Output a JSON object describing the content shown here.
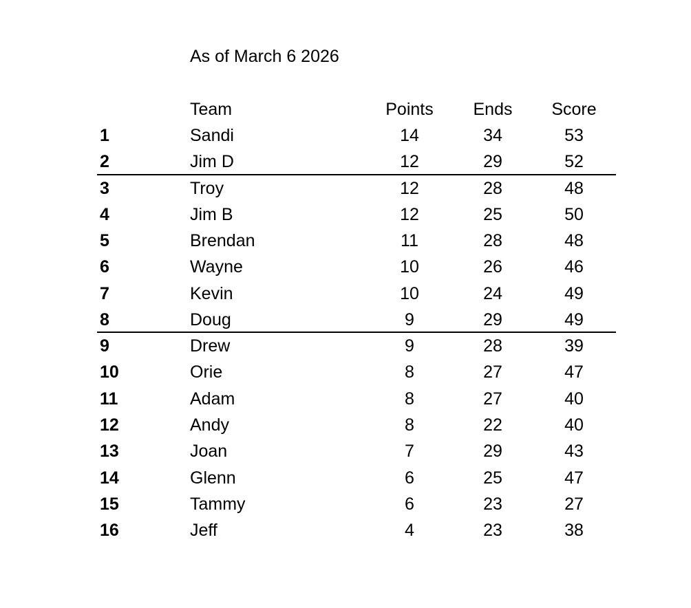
{
  "title": "As of March 6 2026",
  "headers": {
    "rank": "",
    "team": "Team",
    "points": "Points",
    "ends": "Ends",
    "score": "Score"
  },
  "rows": [
    {
      "rank": "1",
      "team": "Sandi",
      "points": "14",
      "ends": "34",
      "score": "53"
    },
    {
      "rank": "2",
      "team": "Jim D",
      "points": "12",
      "ends": "29",
      "score": "52"
    },
    {
      "rank": "3",
      "team": "Troy",
      "points": "12",
      "ends": "28",
      "score": "48"
    },
    {
      "rank": "4",
      "team": "Jim B",
      "points": "12",
      "ends": "25",
      "score": "50"
    },
    {
      "rank": "5",
      "team": "Brendan",
      "points": "11",
      "ends": "28",
      "score": "48"
    },
    {
      "rank": "6",
      "team": "Wayne",
      "points": "10",
      "ends": "26",
      "score": "46"
    },
    {
      "rank": "7",
      "team": "Kevin",
      "points": "10",
      "ends": "24",
      "score": "49"
    },
    {
      "rank": "8",
      "team": "Doug",
      "points": "9",
      "ends": "29",
      "score": "49"
    },
    {
      "rank": "9",
      "team": "Drew",
      "points": "9",
      "ends": "28",
      "score": "39"
    },
    {
      "rank": "10",
      "team": "Orie",
      "points": "8",
      "ends": "27",
      "score": "47"
    },
    {
      "rank": "11",
      "team": "Adam",
      "points": "8",
      "ends": "27",
      "score": "40"
    },
    {
      "rank": "12",
      "team": "Andy",
      "points": "8",
      "ends": "22",
      "score": "40"
    },
    {
      "rank": "13",
      "team": "Joan",
      "points": "7",
      "ends": "29",
      "score": "43"
    },
    {
      "rank": "14",
      "team": "Glenn",
      "points": "6",
      "ends": "25",
      "score": "47"
    },
    {
      "rank": "15",
      "team": "Tammy",
      "points": "6",
      "ends": "23",
      "score": "27"
    },
    {
      "rank": "16",
      "team": "Jeff",
      "points": "4",
      "ends": "23",
      "score": "38"
    }
  ]
}
